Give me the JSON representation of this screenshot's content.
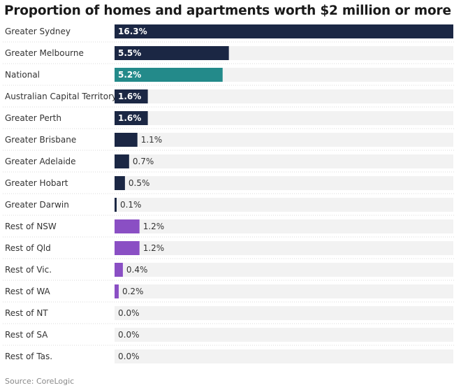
{
  "title": "Proportion of homes and apartments worth $2 million or more",
  "source": "Source: CoreLogic",
  "colors": {
    "capital": "#1b2744",
    "national": "#238a8a",
    "regional": "#8a4fc4",
    "track": "#f2f2f2",
    "label": "#333333",
    "value_inside": "#ffffff",
    "value_outside": "#333333",
    "divider": "#d9d9d9"
  },
  "chart_data": {
    "type": "bar",
    "orientation": "horizontal",
    "title": "Proportion of homes and apartments worth $2 million or more",
    "unit": "%",
    "xlim": [
      0,
      16.3
    ],
    "categories": [
      "Greater Sydney",
      "Greater Melbourne",
      "National",
      "Australian Capital Territory",
      "Greater Perth",
      "Greater Brisbane",
      "Greater Adelaide",
      "Greater Hobart",
      "Greater Darwin",
      "Rest of NSW",
      "Rest of Qld",
      "Rest of Vic.",
      "Rest of WA",
      "Rest of NT",
      "Rest of SA",
      "Rest of Tas."
    ],
    "values": [
      16.3,
      5.5,
      5.2,
      1.6,
      1.6,
      1.1,
      0.7,
      0.5,
      0.1,
      1.2,
      1.2,
      0.4,
      0.2,
      0.0,
      0.0,
      0.0
    ],
    "labels": [
      "16.3%",
      "5.5%",
      "5.2%",
      "1.6%",
      "1.6%",
      "1.1%",
      "0.7%",
      "0.5%",
      "0.1%",
      "1.2%",
      "1.2%",
      "0.4%",
      "0.2%",
      "0.0%",
      "0.0%",
      "0.0%"
    ],
    "groups": [
      "capital",
      "capital",
      "national",
      "capital",
      "capital",
      "capital",
      "capital",
      "capital",
      "capital",
      "regional",
      "regional",
      "regional",
      "regional",
      "regional",
      "regional",
      "regional"
    ],
    "grid": false,
    "legend": "none"
  }
}
